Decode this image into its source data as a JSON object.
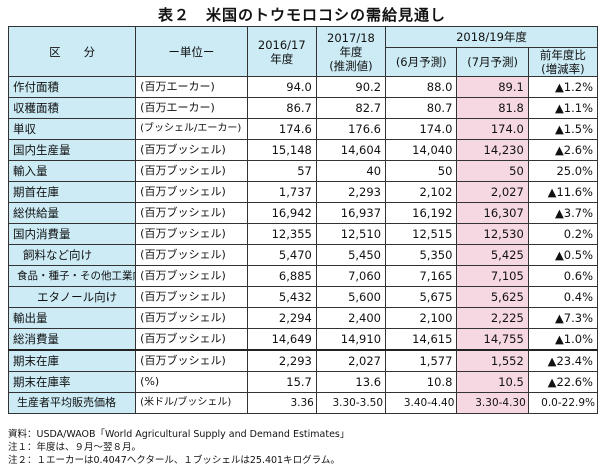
{
  "title": "表２　米国のトウモロコシの需給見通し",
  "header": {
    "category": "区　　分",
    "unit": "ー単位ー",
    "y2016": "2016/17\n年度",
    "y2017": "2017/18\n年度\n(推測値)",
    "y2018": "2018/19年度",
    "june": "(6月予測)",
    "july": "(7月予測)",
    "change": "前年度比\n(増減率)"
  },
  "rows": [
    {
      "item": "作付面積",
      "unit": "(百万エーカー)",
      "v2016": "94.0",
      "v2017": "90.2",
      "june": "88.0",
      "july": "89.1",
      "change": "▲1.2%"
    },
    {
      "item": "収穫面積",
      "unit": "(百万エーカー)",
      "v2016": "86.7",
      "v2017": "82.7",
      "june": "80.7",
      "july": "81.8",
      "change": "▲1.1%"
    },
    {
      "item": "単収",
      "unit": "(ブッシェル/エーカー)",
      "v2016": "174.6",
      "v2017": "176.6",
      "june": "174.0",
      "july": "174.0",
      "change": "▲1.5%"
    },
    {
      "item": "国内生産量",
      "unit": "(百万ブッシェル)",
      "v2016": "15,148",
      "v2017": "14,604",
      "june": "14,040",
      "july": "14,230",
      "change": "▲2.6%"
    },
    {
      "item": "輸入量",
      "unit": "(百万ブッシェル)",
      "v2016": "57",
      "v2017": "40",
      "june": "50",
      "july": "50",
      "change": "25.0%"
    },
    {
      "item": "期首在庫",
      "unit": "(百万ブッシェル)",
      "v2016": "1,737",
      "v2017": "2,293",
      "june": "2,102",
      "july": "2,027",
      "change": "▲11.6%"
    },
    {
      "item": "総供給量",
      "unit": "(百万ブッシェル)",
      "v2016": "16,942",
      "v2017": "16,937",
      "june": "16,192",
      "july": "16,307",
      "change": "▲3.7%"
    },
    {
      "item": "国内消費量",
      "unit": "(百万ブッシェル)",
      "v2016": "12,355",
      "v2017": "12,510",
      "june": "12,515",
      "july": "12,530",
      "change": "0.2%"
    },
    {
      "item": "飼料など向け",
      "unit": "(百万ブッシェル)",
      "v2016": "5,470",
      "v2017": "5,450",
      "june": "5,350",
      "july": "5,425",
      "change": "▲0.5%"
    },
    {
      "item": "食品・種子・その他工業向け",
      "unit": "(百万ブッシェル)",
      "v2016": "6,885",
      "v2017": "7,060",
      "june": "7,165",
      "july": "7,105",
      "change": "0.6%"
    },
    {
      "item": "エタノール向け",
      "unit": "(百万ブッシェル)",
      "v2016": "5,432",
      "v2017": "5,600",
      "june": "5,675",
      "july": "5,625",
      "change": "0.4%"
    },
    {
      "item": "輸出量",
      "unit": "(百万ブッシェル)",
      "v2016": "2,294",
      "v2017": "2,400",
      "june": "2,100",
      "july": "2,225",
      "change": "▲7.3%"
    },
    {
      "item": "総消費量",
      "unit": "(百万ブッシェル)",
      "v2016": "14,649",
      "v2017": "14,910",
      "june": "14,615",
      "july": "14,755",
      "change": "▲1.0%"
    },
    {
      "item": "期末在庫",
      "unit": "(百万ブッシェル)",
      "v2016": "2,293",
      "v2017": "2,027",
      "june": "1,577",
      "july": "1,552",
      "change": "▲23.4%"
    },
    {
      "item": "期末在庫率",
      "unit": "(%)",
      "v2016": "15.7",
      "v2017": "13.6",
      "june": "10.8",
      "july": "10.5",
      "change": "▲22.6%"
    },
    {
      "item": "生産者平均販売価格",
      "unit": "(米ドル/ブッシェル)",
      "v2016": "3.36",
      "v2017": "3.30-3.50",
      "june": "3.40-4.40",
      "july": "3.30-4.30",
      "change": "0.0-22.9%"
    }
  ],
  "notes": {
    "source": "資料：USDA/WAOB「World Agricultural Supply and Demand Estimates」",
    "note1": "注１：年度は、９月～翌８月。",
    "note2": "注２：１エーカーは0.4047ヘクタール、１ブッシェルは25.401キログラム。"
  }
}
